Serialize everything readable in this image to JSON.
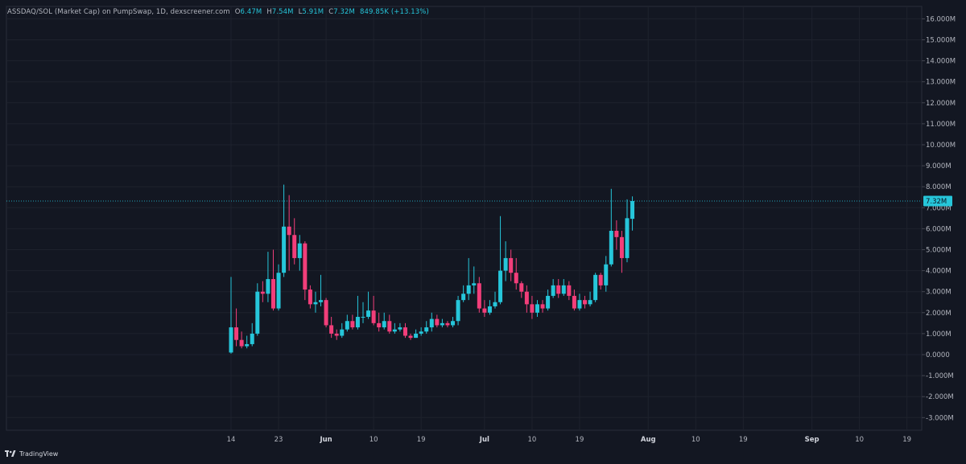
{
  "header": {
    "symbol": "ASSDAQ/SOL (Market Cap) on PumpSwap, 1D, dexscreener.com",
    "o_label": "O",
    "o_value": "6.47M",
    "h_label": "H",
    "h_value": "7.54M",
    "l_label": "L",
    "l_value": "5.91M",
    "c_label": "C",
    "c_value": "7.32M",
    "change": "849.85K (+13.13%)"
  },
  "brand": {
    "name": "TradingView"
  },
  "colors": {
    "background": "#131722",
    "grid": "#1e222d",
    "up": "#26c6da",
    "down": "#f23e7a",
    "text": "#b2b5be"
  },
  "chart_data": {
    "type": "candlestick",
    "y_ticks": [
      "16.000M",
      "15.000M",
      "14.000M",
      "13.000M",
      "12.000M",
      "11.000M",
      "10.000M",
      "9.000M",
      "8.000M",
      "7.000M",
      "6.000M",
      "5.000M",
      "4.000M",
      "3.000M",
      "2.000M",
      "1.000M",
      "0.0000",
      "-1.000M",
      "-2.000M",
      "-3.000M"
    ],
    "ylim": [
      -3.5,
      16.8
    ],
    "x_ticks": [
      {
        "label": "14",
        "day": 0
      },
      {
        "label": "23",
        "day": 9
      },
      {
        "label": "Jun",
        "day": 18,
        "bold": true
      },
      {
        "label": "10",
        "day": 27
      },
      {
        "label": "19",
        "day": 36
      },
      {
        "label": "Jul",
        "day": 48,
        "bold": true
      },
      {
        "label": "10",
        "day": 57
      },
      {
        "label": "19",
        "day": 66
      },
      {
        "label": "Aug",
        "day": 79,
        "bold": true
      },
      {
        "label": "10",
        "day": 88
      },
      {
        "label": "19",
        "day": 97
      },
      {
        "label": "Sep",
        "day": 110,
        "bold": true
      },
      {
        "label": "10",
        "day": 119
      },
      {
        "label": "19",
        "day": 128
      }
    ],
    "last_price": 7.32,
    "last_price_label": "7.32M",
    "candles": [
      [
        0.1,
        1.3,
        0.05,
        3.7
      ],
      [
        1.3,
        0.7,
        0.4,
        2.2
      ],
      [
        0.7,
        0.4,
        0.3,
        1.1
      ],
      [
        0.4,
        0.5,
        0.3,
        0.9
      ],
      [
        0.5,
        1.0,
        0.4,
        1.5
      ],
      [
        1.0,
        3.0,
        0.9,
        3.4
      ],
      [
        3.0,
        2.9,
        2.5,
        3.5
      ],
      [
        2.9,
        3.6,
        2.5,
        4.9
      ],
      [
        3.6,
        2.2,
        2.1,
        5.0
      ],
      [
        2.2,
        3.9,
        2.1,
        4.3
      ],
      [
        3.9,
        6.1,
        3.7,
        8.1
      ],
      [
        6.1,
        5.7,
        4.0,
        7.6
      ],
      [
        5.7,
        4.6,
        4.3,
        6.5
      ],
      [
        4.6,
        5.3,
        4.0,
        5.7
      ],
      [
        5.3,
        3.1,
        2.6,
        5.4
      ],
      [
        3.1,
        2.4,
        2.2,
        3.3
      ],
      [
        2.4,
        2.5,
        2.0,
        3.0
      ],
      [
        2.5,
        2.6,
        2.3,
        3.8
      ],
      [
        2.6,
        1.4,
        1.3,
        2.7
      ],
      [
        1.4,
        1.0,
        0.8,
        1.8
      ],
      [
        1.0,
        0.9,
        0.7,
        1.2
      ],
      [
        0.9,
        1.2,
        0.8,
        1.5
      ],
      [
        1.2,
        1.6,
        1.1,
        1.9
      ],
      [
        1.6,
        1.3,
        1.2,
        1.9
      ],
      [
        1.3,
        1.8,
        1.2,
        2.8
      ],
      [
        1.8,
        1.8,
        1.5,
        2.5
      ],
      [
        1.8,
        2.1,
        1.7,
        3.0
      ],
      [
        2.1,
        1.5,
        1.4,
        2.8
      ],
      [
        1.5,
        1.3,
        1.1,
        2.0
      ],
      [
        1.3,
        1.6,
        1.2,
        2.0
      ],
      [
        1.6,
        1.1,
        1.0,
        1.9
      ],
      [
        1.1,
        1.2,
        1.0,
        1.5
      ],
      [
        1.2,
        1.3,
        1.1,
        1.5
      ],
      [
        1.3,
        0.9,
        0.8,
        1.5
      ],
      [
        0.9,
        0.8,
        0.7,
        1.0
      ],
      [
        0.8,
        1.0,
        0.8,
        1.2
      ],
      [
        1.0,
        1.1,
        0.9,
        1.3
      ],
      [
        1.1,
        1.3,
        1.0,
        1.6
      ],
      [
        1.3,
        1.7,
        1.1,
        2.0
      ],
      [
        1.7,
        1.4,
        1.3,
        1.9
      ],
      [
        1.4,
        1.5,
        1.3,
        1.7
      ],
      [
        1.5,
        1.4,
        1.3,
        1.6
      ],
      [
        1.4,
        1.6,
        1.3,
        1.8
      ],
      [
        1.6,
        2.6,
        1.4,
        2.8
      ],
      [
        2.6,
        2.9,
        2.5,
        3.3
      ],
      [
        2.9,
        3.3,
        2.6,
        4.6
      ],
      [
        3.3,
        3.4,
        2.9,
        4.2
      ],
      [
        3.4,
        2.2,
        2.0,
        3.7
      ],
      [
        2.2,
        2.0,
        1.8,
        2.6
      ],
      [
        2.0,
        2.3,
        1.9,
        2.6
      ],
      [
        2.3,
        2.5,
        2.2,
        3.0
      ],
      [
        2.5,
        4.0,
        2.4,
        6.6
      ],
      [
        4.0,
        4.6,
        3.5,
        5.4
      ],
      [
        4.6,
        3.9,
        3.5,
        5.0
      ],
      [
        3.9,
        3.4,
        3.1,
        4.6
      ],
      [
        3.4,
        3.0,
        2.7,
        3.5
      ],
      [
        3.0,
        2.4,
        2.0,
        3.3
      ],
      [
        2.4,
        2.0,
        1.7,
        2.8
      ],
      [
        2.0,
        2.4,
        1.8,
        2.6
      ],
      [
        2.4,
        2.2,
        2.0,
        2.6
      ],
      [
        2.2,
        2.8,
        2.1,
        3.1
      ],
      [
        2.8,
        3.3,
        2.7,
        3.6
      ],
      [
        3.3,
        2.9,
        2.7,
        3.6
      ],
      [
        2.9,
        3.3,
        2.8,
        3.6
      ],
      [
        3.3,
        2.8,
        2.6,
        3.5
      ],
      [
        2.8,
        2.2,
        2.1,
        3.1
      ],
      [
        2.2,
        2.6,
        2.1,
        2.9
      ],
      [
        2.6,
        2.4,
        2.2,
        2.8
      ],
      [
        2.4,
        2.6,
        2.3,
        3.0
      ],
      [
        2.6,
        3.8,
        2.5,
        3.9
      ],
      [
        3.8,
        3.3,
        3.1,
        3.9
      ],
      [
        3.3,
        4.3,
        3.0,
        4.7
      ],
      [
        4.3,
        5.9,
        4.2,
        7.9
      ],
      [
        5.9,
        5.6,
        5.0,
        6.4
      ],
      [
        5.6,
        4.6,
        3.9,
        5.9
      ],
      [
        4.6,
        6.5,
        4.4,
        7.4
      ],
      [
        6.47,
        7.32,
        5.91,
        7.54
      ]
    ]
  }
}
